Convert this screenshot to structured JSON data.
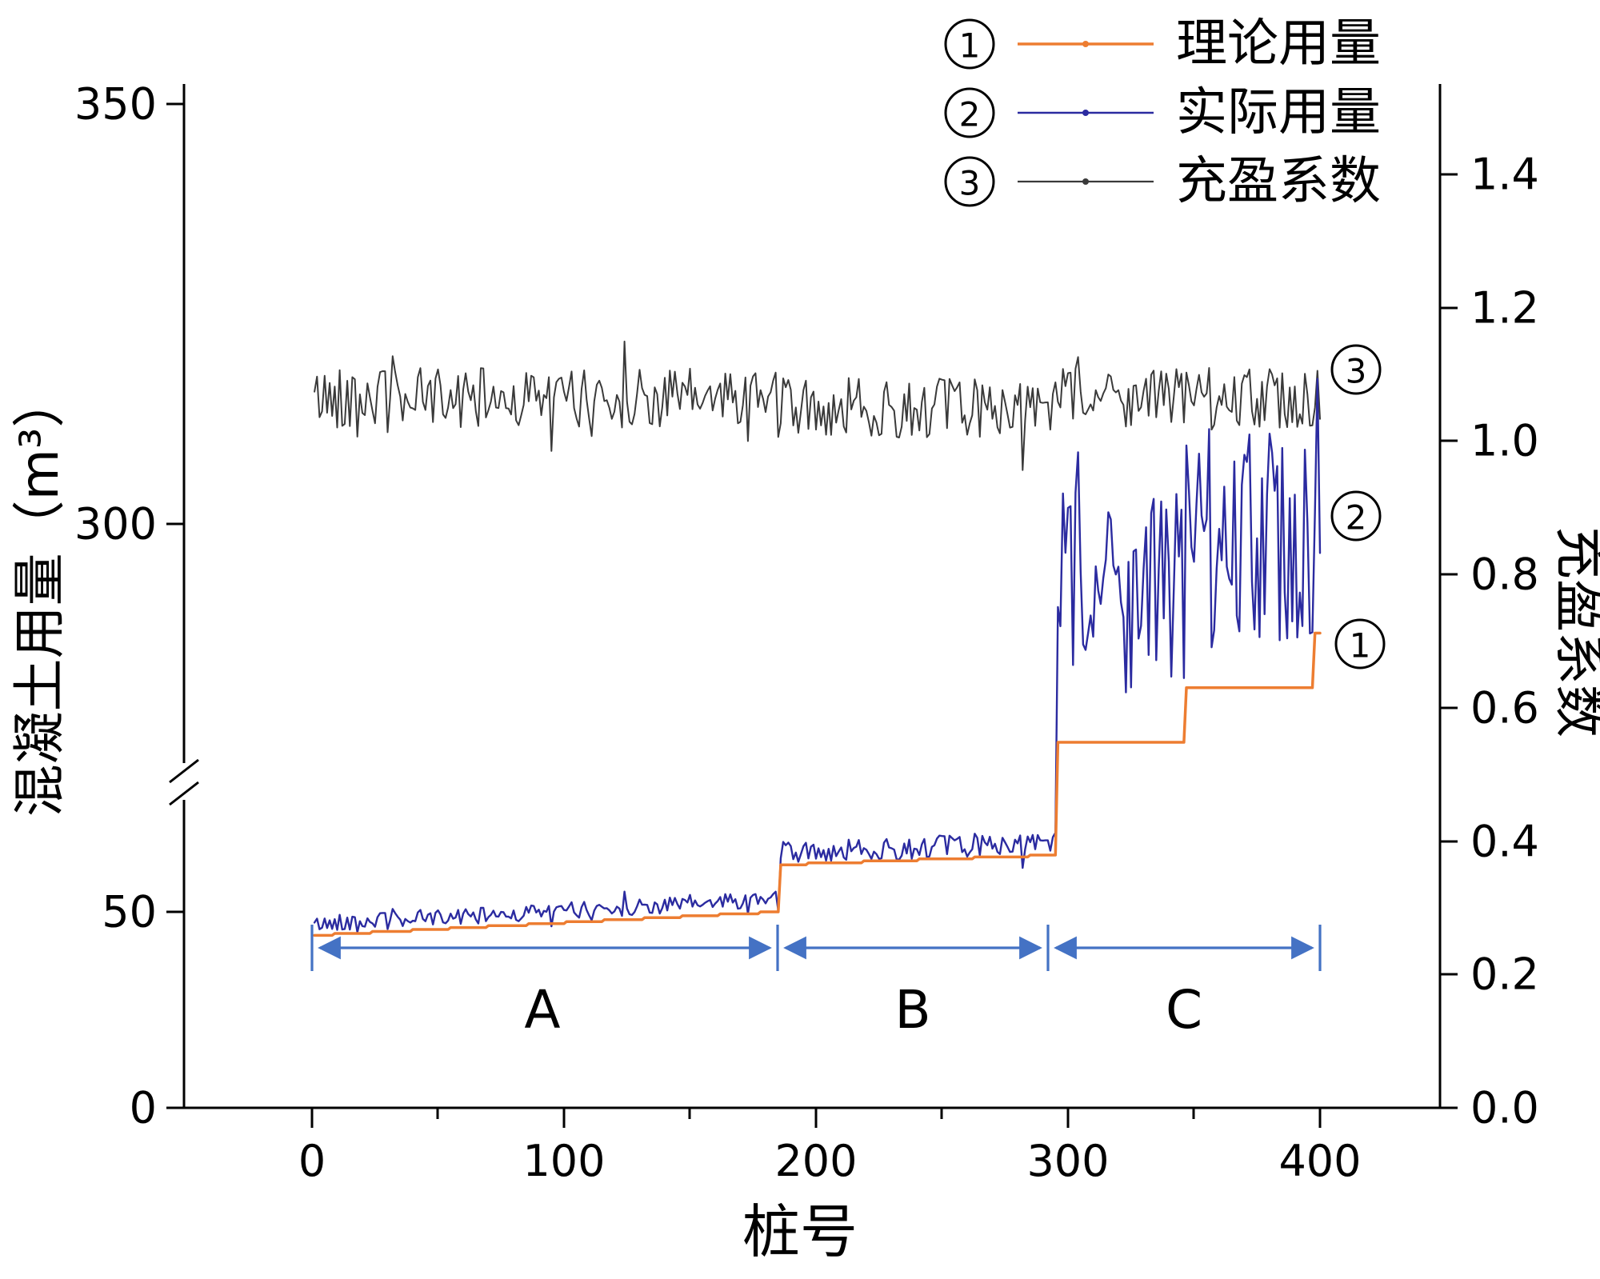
{
  "chart_data": {
    "type": "line",
    "title": "",
    "x_axis": {
      "label": "桩号",
      "ticks": [
        "0",
        "100",
        "200",
        "300",
        "400"
      ],
      "range": [
        0,
        400
      ]
    },
    "y_left": {
      "label": "混凝土用量（m³）",
      "ticks": [
        "350",
        "300",
        "50",
        "0"
      ],
      "broken_axis": true,
      "lower_range": [
        0,
        60
      ],
      "upper_range": [
        270,
        350
      ]
    },
    "y_right": {
      "label": "充盈系数",
      "ticks": [
        "1.4",
        "1.2",
        "1.0",
        "0.8",
        "0.6",
        "0.4",
        "0.2",
        "0.0"
      ],
      "range": [
        0.0,
        1.4
      ]
    },
    "series": [
      {
        "id": "theoretical",
        "name": "理论用量",
        "digit": "1",
        "marker": "①",
        "color": "#ED7D31",
        "axis": "left",
        "segments": [
          {
            "x_start": 1,
            "x_end": 185,
            "type": "ramp",
            "start": 44,
            "end": 50,
            "step": 0.5
          },
          {
            "x_start": 186,
            "x_end": 295,
            "type": "ramp",
            "start": 62,
            "end": 64.5,
            "step": 0.5
          },
          {
            "x_start": 296,
            "x_end": 346,
            "type": "flat",
            "value": 274
          },
          {
            "x_start": 347,
            "x_end": 397,
            "type": "flat",
            "value": 280.5
          },
          {
            "x_start": 398,
            "x_end": 400,
            "type": "flat",
            "value": 287
          }
        ]
      },
      {
        "id": "actual",
        "name": "实际用量",
        "digit": "2",
        "marker": "②",
        "color": "#2B2BA0",
        "axis": "left",
        "rule": "theoretical × coefficient"
      },
      {
        "id": "coefficient",
        "name": "充盈系数",
        "digit": "3",
        "marker": "③",
        "color": "#3A3A3A",
        "axis": "right",
        "mean": {
          "A": 1.065,
          "B": 1.05,
          "C": 1.065
        },
        "noise": 0.045,
        "spike_prob": 0.08,
        "spike_amp": 0.06,
        "approx_range": [
          1.0,
          1.13
        ]
      }
    ],
    "regions": [
      {
        "label": "A",
        "x_start": 0,
        "x_end": 185
      },
      {
        "label": "B",
        "x_start": 185,
        "x_end": 292
      },
      {
        "label": "C",
        "x_start": 292,
        "x_end": 400
      }
    ],
    "region_color": "#4472C4",
    "seed": 42
  },
  "legend": {
    "items": [
      {
        "digit": "1",
        "marker": "①",
        "label": "理论用量"
      },
      {
        "digit": "2",
        "marker": "②",
        "label": "实际用量"
      },
      {
        "digit": "3",
        "marker": "③",
        "label": "充盈系数"
      }
    ]
  }
}
